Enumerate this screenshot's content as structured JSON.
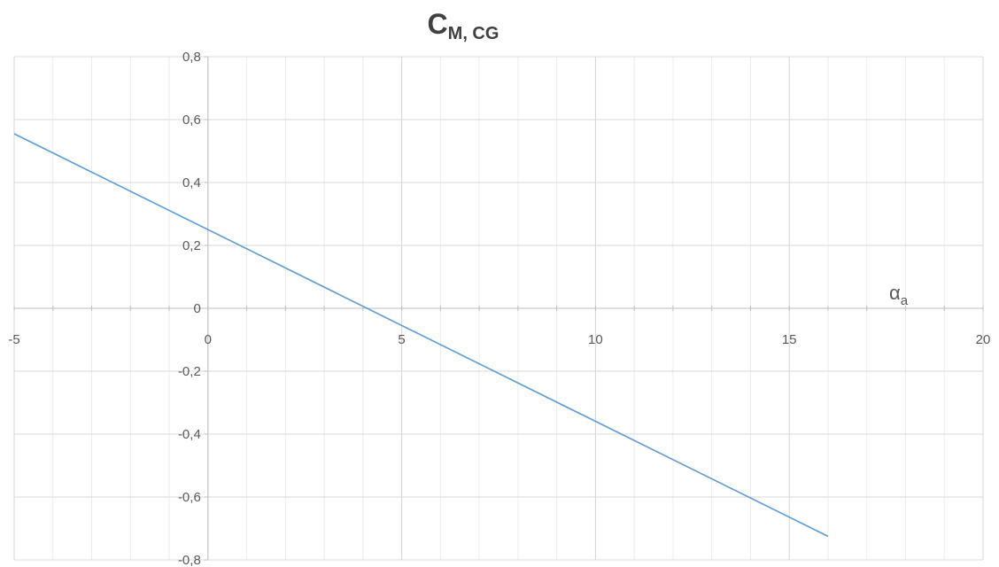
{
  "chart_data": {
    "type": "line",
    "title": "C",
    "title_subscript": "M, CG",
    "xlabel": "α",
    "xlabel_subscript": "a",
    "ylabel": "",
    "xlim": [
      -5,
      20
    ],
    "ylim": [
      -0.8,
      0.8
    ],
    "x_major_ticks": [
      -5,
      0,
      5,
      10,
      15,
      20
    ],
    "x_minor_step": 1,
    "y_ticks": [
      -0.8,
      -0.6,
      -0.4,
      -0.2,
      0,
      0.2,
      0.4,
      0.6,
      0.8
    ],
    "x_tick_labels": [
      "-5",
      "0",
      "5",
      "10",
      "15",
      "20"
    ],
    "y_tick_labels": [
      "-0,8",
      "-0,6",
      "-0,4",
      "-0,2",
      "0",
      "0,2",
      "0,4",
      "0,6",
      "0,8"
    ],
    "grid": true,
    "legend": "none",
    "series": [
      {
        "color": "#5b9bd5",
        "x": [
          -5,
          16
        ],
        "y": [
          0.555,
          -0.725
        ]
      }
    ]
  }
}
